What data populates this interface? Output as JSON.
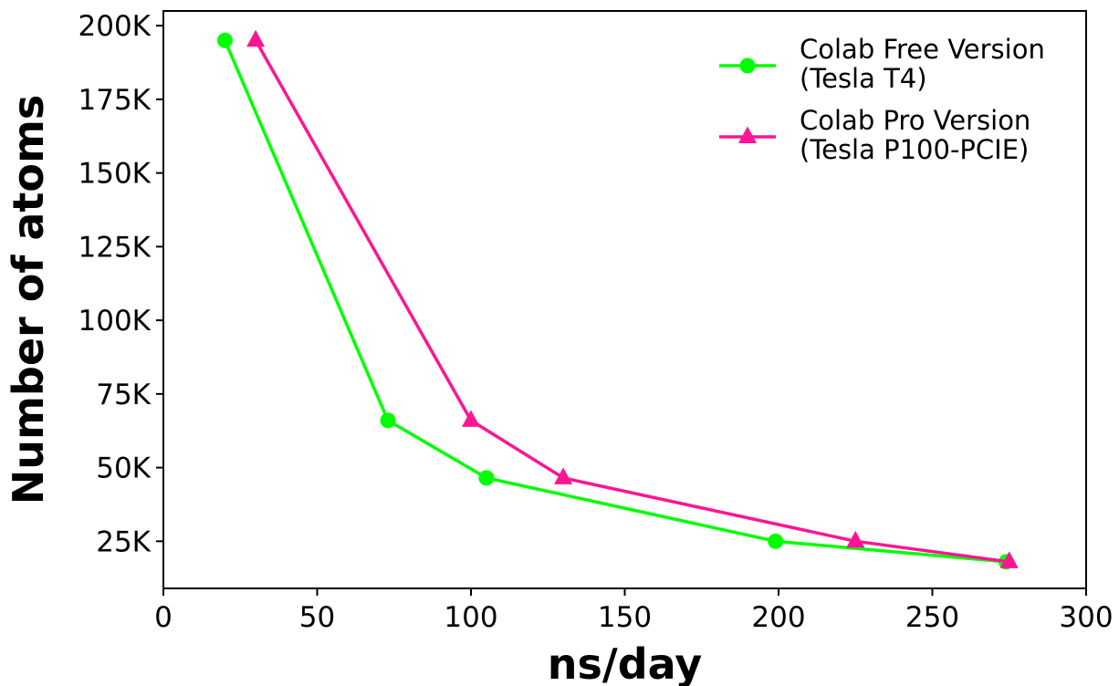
{
  "chart_data": {
    "type": "line",
    "title": "",
    "xlabel": "ns/day",
    "ylabel": "Number of atoms",
    "xlim": [
      0,
      300
    ],
    "ylim": [
      9000,
      205000
    ],
    "xticks": [
      0,
      50,
      100,
      150,
      200,
      250,
      300
    ],
    "xtick_labels": [
      "0",
      "50",
      "100",
      "150",
      "200",
      "250",
      "300"
    ],
    "yticks": [
      25000,
      50000,
      75000,
      100000,
      125000,
      150000,
      175000,
      200000
    ],
    "ytick_labels": [
      "25K",
      "50K",
      "75K",
      "100K",
      "125K",
      "150K",
      "175K",
      "200K"
    ],
    "grid": false,
    "legend_position": "top-right",
    "series": [
      {
        "name_lines": [
          "Colab Free Version",
          "(Tesla T4)"
        ],
        "color": "#00ff00",
        "marker": "circle",
        "points": [
          {
            "x": 20,
            "y": 195000
          },
          {
            "x": 73,
            "y": 66000
          },
          {
            "x": 105,
            "y": 46500
          },
          {
            "x": 199,
            "y": 25000
          },
          {
            "x": 274,
            "y": 18000
          }
        ]
      },
      {
        "name_lines": [
          "Colab Pro Version",
          "(Tesla P100-PCIE)"
        ],
        "color": "#ff1493",
        "marker": "triangle",
        "points": [
          {
            "x": 30,
            "y": 195000
          },
          {
            "x": 100,
            "y": 66000
          },
          {
            "x": 130,
            "y": 46500
          },
          {
            "x": 225,
            "y": 25000
          },
          {
            "x": 275,
            "y": 18000
          }
        ]
      }
    ]
  }
}
